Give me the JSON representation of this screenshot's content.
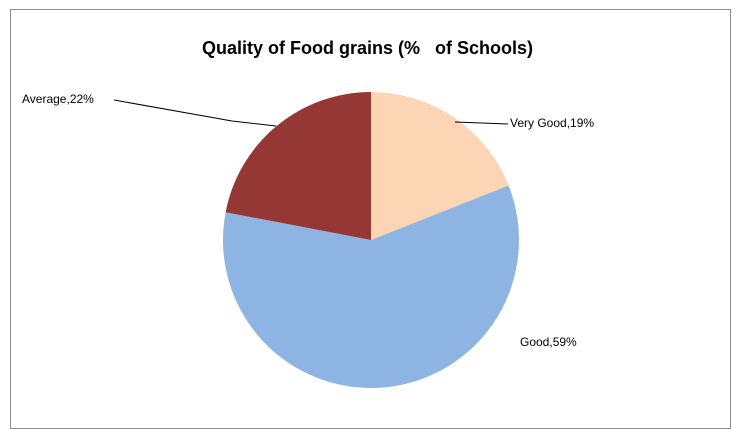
{
  "chart_data": {
    "type": "pie",
    "title": "Quality of Food grains (%   of Schools)",
    "slices": [
      {
        "label": "Very Good",
        "value": 19,
        "data_label": "Very Good,19%",
        "color": "#fcd5b5"
      },
      {
        "label": "Good",
        "value": 59,
        "data_label": "Good,59%",
        "color": "#8eb4e3"
      },
      {
        "label": "Average",
        "value": 22,
        "data_label": "Average,22%",
        "color": "#953735"
      }
    ],
    "start_angle": "12 o'clock",
    "direction": "clockwise",
    "legend": "none",
    "data_labels": "outside"
  }
}
